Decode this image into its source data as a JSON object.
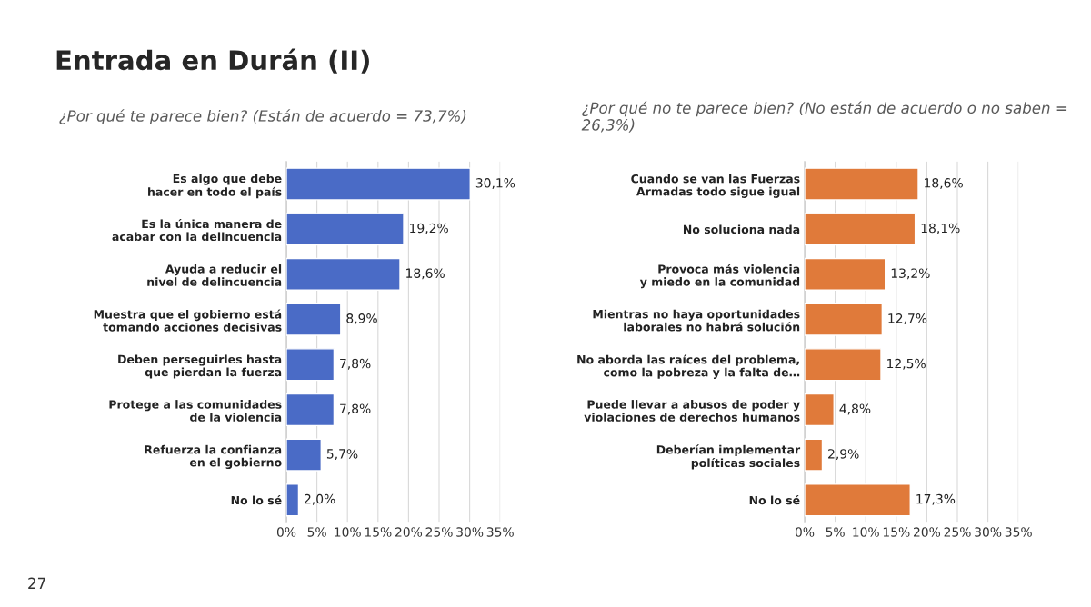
{
  "chart_data": [
    {
      "type": "bar",
      "orientation": "horizontal",
      "title": "Entrada en Durán (II)",
      "subtitle": "¿Por qué te parece bien? (Están de acuerdo = 73,7%)",
      "categories": [
        "Es algo que debe hacer en todo el país",
        "Es la única manera de acabar con la delincuencia",
        "Ayuda a reducir el nivel de delincuencia",
        "Muestra que el gobierno está tomando acciones decisivas",
        "Deben perseguirles hasta que pierdan la fuerza",
        "Protege a las comunidades de la violencia",
        "Refuerza la confianza en el gobierno",
        "No lo sé"
      ],
      "values": [
        30.1,
        19.2,
        18.6,
        8.9,
        7.8,
        7.8,
        5.7,
        2.0
      ],
      "value_labels": [
        "30,1%",
        "19,2%",
        "18,6%",
        "8,9%",
        "7,8%",
        "7,8%",
        "5,7%",
        "2,0%"
      ],
      "color": "#4a6bc6",
      "xlim": [
        0,
        35
      ],
      "xticks": [
        {
          "value": 0,
          "label": "0%"
        },
        {
          "value": 5,
          "label": "5%"
        },
        {
          "value": 10,
          "label": "10%"
        },
        {
          "value": 15,
          "label": "15%"
        },
        {
          "value": 20,
          "label": "20%"
        },
        {
          "value": 25,
          "label": "25%"
        },
        {
          "value": 30,
          "label": "30%"
        },
        {
          "value": 35,
          "label": "35%"
        }
      ],
      "grid": "x",
      "annotations": [
        "27"
      ]
    },
    {
      "type": "bar",
      "orientation": "horizontal",
      "title": "¿Por qué no te parece bien? (No están de acuerdo o no saben = 26,3%)",
      "categories": [
        "Cuando se van las Fuerzas Armadas todo sigue igual",
        "No soluciona nada",
        "Provoca más violencia y miedo en la comunidad",
        "Mientras no haya oportunidades laborales no habrá solución",
        "No aborda las raíces del problema, como la pobreza y la falta de…",
        "Puede llevar a abusos de poder y violaciones de derechos humanos",
        "Deberían implementar políticas sociales",
        "No lo sé"
      ],
      "values": [
        18.6,
        18.1,
        13.2,
        12.7,
        12.5,
        4.8,
        2.9,
        17.3
      ],
      "value_labels": [
        "18,6%",
        "18,1%",
        "13,2%",
        "12,7%",
        "12,5%",
        "4,8%",
        "2,9%",
        "17,3%"
      ],
      "color": "#e07a3a",
      "xlim": [
        0,
        35
      ],
      "xticks": [
        {
          "value": 0,
          "label": "0%"
        },
        {
          "value": 5,
          "label": "5%"
        },
        {
          "value": 10,
          "label": "10%"
        },
        {
          "value": 15,
          "label": "15%"
        },
        {
          "value": 20,
          "label": "20%"
        },
        {
          "value": 25,
          "label": "25%"
        },
        {
          "value": 30,
          "label": "30%"
        },
        {
          "value": 35,
          "label": "35%"
        }
      ],
      "grid": "x"
    }
  ]
}
